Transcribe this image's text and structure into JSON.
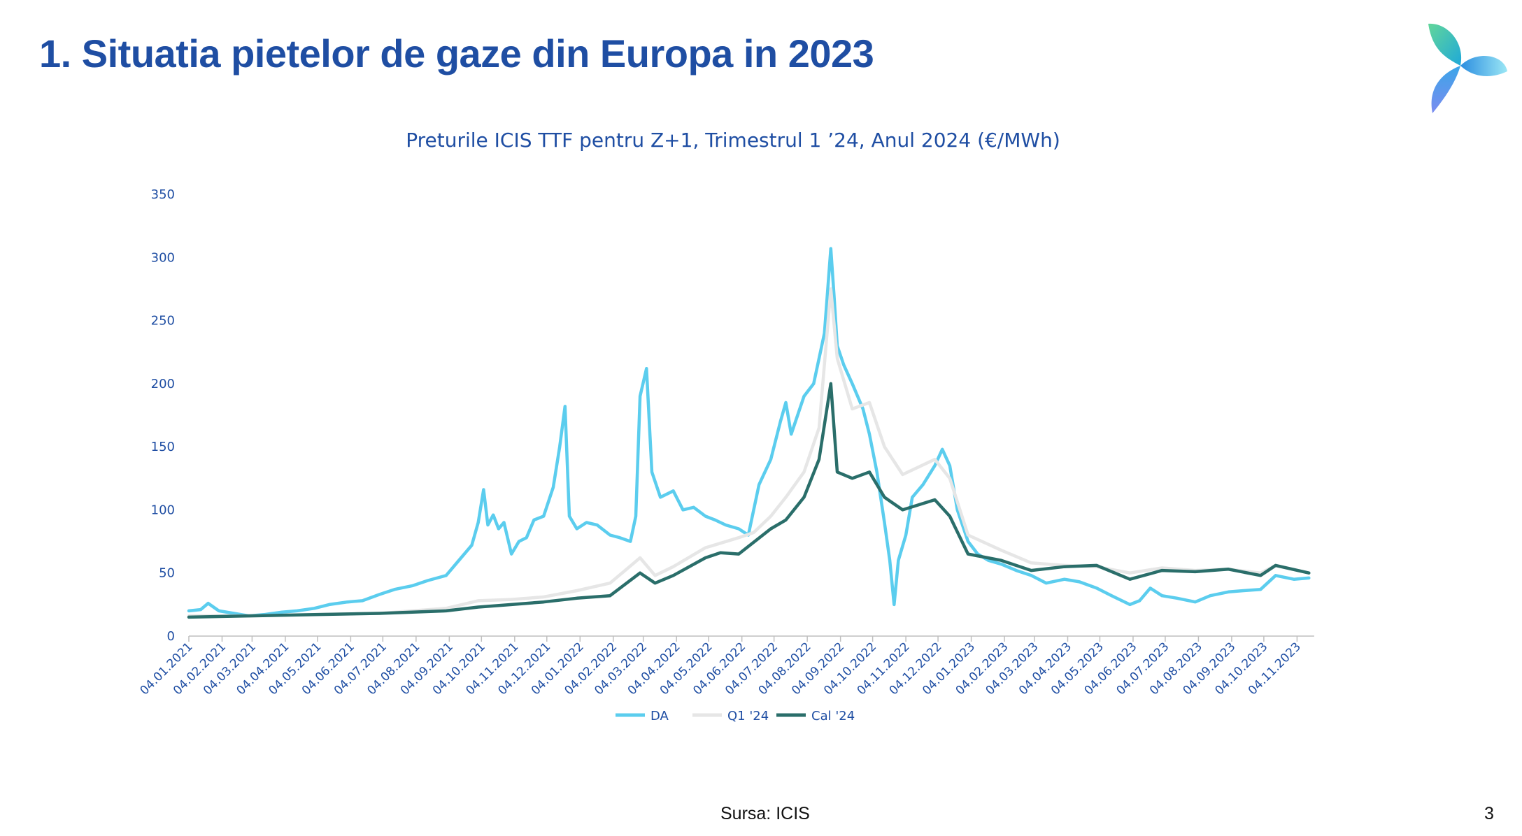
{
  "slide": {
    "title": "1. Situatia pietelor de gaze din Europa in 2023",
    "source": "Sursa: ICIS",
    "page_number": "3"
  },
  "chart_data": {
    "type": "line",
    "title": "Preturile ICIS TTF pentru Z+1, Trimestrul 1 ’24, Anul 2024 (€/MWh)",
    "xlabel": "",
    "ylabel": "",
    "ylim": [
      0,
      350
    ],
    "yticks": [
      0,
      50,
      100,
      150,
      200,
      250,
      300,
      350
    ],
    "grid": false,
    "legend_position": "bottom",
    "x_tick_labels": [
      "04.01.2021",
      "04.02.2021",
      "04.03.2021",
      "04.04.2021",
      "04.05.2021",
      "04.06.2021",
      "04.07.2021",
      "04.08.2021",
      "04.09.2021",
      "04.10.2021",
      "04.11.2021",
      "04.12.2021",
      "04.01.2022",
      "04.02.2022",
      "04.03.2022",
      "04.04.2022",
      "04.05.2022",
      "04.06.2022",
      "04.07.2022",
      "04.08.2022",
      "04.09.2022",
      "04.10.2022",
      "04.11.2022",
      "04.12.2022",
      "04.01.2023",
      "04.02.2023",
      "04.03.2023",
      "04.04.2023",
      "04.05.2023",
      "04.06.2023",
      "04.07.2023",
      "04.08.2023",
      "04.09.2023",
      "04.10.2023",
      "04.11.2023"
    ],
    "series": [
      {
        "name": "DA",
        "color": "#5bcdee",
        "points": [
          [
            "04.01.2021",
            20
          ],
          [
            "15.01.2021",
            21
          ],
          [
            "22.01.2021",
            26
          ],
          [
            "01.02.2021",
            20
          ],
          [
            "15.02.2021",
            18
          ],
          [
            "01.03.2021",
            16
          ],
          [
            "15.03.2021",
            17
          ],
          [
            "01.04.2021",
            19
          ],
          [
            "15.04.2021",
            20
          ],
          [
            "01.05.2021",
            22
          ],
          [
            "15.05.2021",
            25
          ],
          [
            "01.06.2021",
            27
          ],
          [
            "15.06.2021",
            28
          ],
          [
            "01.07.2021",
            33
          ],
          [
            "15.07.2021",
            37
          ],
          [
            "01.08.2021",
            40
          ],
          [
            "15.08.2021",
            44
          ],
          [
            "01.09.2021",
            48
          ],
          [
            "15.09.2021",
            62
          ],
          [
            "25.09.2021",
            72
          ],
          [
            "01.10.2021",
            90
          ],
          [
            "06.10.2021",
            116
          ],
          [
            "10.10.2021",
            88
          ],
          [
            "15.10.2021",
            96
          ],
          [
            "20.10.2021",
            85
          ],
          [
            "25.10.2021",
            90
          ],
          [
            "01.11.2021",
            65
          ],
          [
            "08.11.2021",
            75
          ],
          [
            "15.11.2021",
            78
          ],
          [
            "22.11.2021",
            92
          ],
          [
            "01.12.2021",
            95
          ],
          [
            "10.12.2021",
            118
          ],
          [
            "16.12.2021",
            150
          ],
          [
            "21.12.2021",
            182
          ],
          [
            "25.12.2021",
            95
          ],
          [
            "01.01.2022",
            85
          ],
          [
            "10.01.2022",
            90
          ],
          [
            "20.01.2022",
            88
          ],
          [
            "01.02.2022",
            80
          ],
          [
            "10.02.2022",
            78
          ],
          [
            "20.02.2022",
            75
          ],
          [
            "25.02.2022",
            95
          ],
          [
            "01.03.2022",
            190
          ],
          [
            "07.03.2022",
            212
          ],
          [
            "12.03.2022",
            130
          ],
          [
            "20.03.2022",
            110
          ],
          [
            "01.04.2022",
            115
          ],
          [
            "10.04.2022",
            100
          ],
          [
            "20.04.2022",
            102
          ],
          [
            "01.05.2022",
            95
          ],
          [
            "10.05.2022",
            92
          ],
          [
            "20.05.2022",
            88
          ],
          [
            "01.06.2022",
            85
          ],
          [
            "10.06.2022",
            80
          ],
          [
            "20.06.2022",
            120
          ],
          [
            "01.07.2022",
            140
          ],
          [
            "10.07.2022",
            170
          ],
          [
            "15.07.2022",
            185
          ],
          [
            "20.07.2022",
            160
          ],
          [
            "01.08.2022",
            190
          ],
          [
            "10.08.2022",
            200
          ],
          [
            "20.08.2022",
            240
          ],
          [
            "26.08.2022",
            307
          ],
          [
            "29.08.2022",
            270
          ],
          [
            "01.09.2022",
            230
          ],
          [
            "07.09.2022",
            215
          ],
          [
            "15.09.2022",
            200
          ],
          [
            "25.09.2022",
            180
          ],
          [
            "01.10.2022",
            160
          ],
          [
            "08.10.2022",
            130
          ],
          [
            "15.10.2022",
            90
          ],
          [
            "20.10.2022",
            60
          ],
          [
            "24.10.2022",
            25
          ],
          [
            "28.10.2022",
            60
          ],
          [
            "04.11.2022",
            80
          ],
          [
            "10.11.2022",
            110
          ],
          [
            "20.11.2022",
            120
          ],
          [
            "01.12.2022",
            135
          ],
          [
            "08.12.2022",
            148
          ],
          [
            "15.12.2022",
            135
          ],
          [
            "22.12.2022",
            100
          ],
          [
            "01.01.2023",
            75
          ],
          [
            "10.01.2023",
            65
          ],
          [
            "20.01.2023",
            60
          ],
          [
            "01.02.2023",
            57
          ],
          [
            "15.02.2023",
            52
          ],
          [
            "01.03.2023",
            48
          ],
          [
            "15.03.2023",
            42
          ],
          [
            "01.04.2023",
            45
          ],
          [
            "15.04.2023",
            43
          ],
          [
            "01.05.2023",
            38
          ],
          [
            "15.05.2023",
            32
          ],
          [
            "01.06.2023",
            25
          ],
          [
            "10.06.2023",
            28
          ],
          [
            "20.06.2023",
            38
          ],
          [
            "01.07.2023",
            32
          ],
          [
            "15.07.2023",
            30
          ],
          [
            "01.08.2023",
            27
          ],
          [
            "15.08.2023",
            32
          ],
          [
            "01.09.2023",
            35
          ],
          [
            "15.09.2023",
            36
          ],
          [
            "01.10.2023",
            37
          ],
          [
            "15.10.2023",
            48
          ],
          [
            "01.11.2023",
            45
          ],
          [
            "15.11.2023",
            46
          ]
        ]
      },
      {
        "name": "Q1 '24",
        "color": "#e6e6e6",
        "points": [
          [
            "04.01.2021",
            16
          ],
          [
            "01.03.2021",
            16
          ],
          [
            "01.05.2021",
            17
          ],
          [
            "01.07.2021",
            18
          ],
          [
            "01.09.2021",
            22
          ],
          [
            "01.10.2021",
            28
          ],
          [
            "01.11.2021",
            29
          ],
          [
            "01.12.2021",
            31
          ],
          [
            "01.01.2022",
            36
          ],
          [
            "01.02.2022",
            42
          ],
          [
            "01.03.2022",
            62
          ],
          [
            "15.03.2022",
            48
          ],
          [
            "01.04.2022",
            55
          ],
          [
            "01.05.2022",
            70
          ],
          [
            "01.06.2022",
            78
          ],
          [
            "15.06.2022",
            82
          ],
          [
            "01.07.2022",
            95
          ],
          [
            "15.07.2022",
            110
          ],
          [
            "01.08.2022",
            130
          ],
          [
            "15.08.2022",
            165
          ],
          [
            "26.08.2022",
            275
          ],
          [
            "01.09.2022",
            220
          ],
          [
            "15.09.2022",
            180
          ],
          [
            "01.10.2022",
            185
          ],
          [
            "15.10.2022",
            150
          ],
          [
            "01.11.2022",
            128
          ],
          [
            "01.12.2022",
            140
          ],
          [
            "15.12.2022",
            125
          ],
          [
            "01.01.2023",
            80
          ],
          [
            "01.02.2023",
            68
          ],
          [
            "01.03.2023",
            58
          ],
          [
            "01.04.2023",
            56
          ],
          [
            "01.05.2023",
            55
          ],
          [
            "01.06.2023",
            50
          ],
          [
            "01.07.2023",
            54
          ],
          [
            "01.08.2023",
            52
          ],
          [
            "01.09.2023",
            53
          ],
          [
            "01.10.2023",
            50
          ],
          [
            "15.10.2023",
            56
          ],
          [
            "15.11.2023",
            50
          ]
        ]
      },
      {
        "name": "Cal '24",
        "color": "#2a6e6a",
        "points": [
          [
            "04.01.2021",
            15
          ],
          [
            "01.03.2021",
            16
          ],
          [
            "01.05.2021",
            17
          ],
          [
            "01.07.2021",
            18
          ],
          [
            "01.09.2021",
            20
          ],
          [
            "01.10.2021",
            23
          ],
          [
            "01.11.2021",
            25
          ],
          [
            "01.12.2021",
            27
          ],
          [
            "01.01.2022",
            30
          ],
          [
            "01.02.2022",
            32
          ],
          [
            "01.03.2022",
            50
          ],
          [
            "15.03.2022",
            42
          ],
          [
            "01.04.2022",
            48
          ],
          [
            "01.05.2022",
            62
          ],
          [
            "15.05.2022",
            66
          ],
          [
            "01.06.2022",
            65
          ],
          [
            "01.07.2022",
            85
          ],
          [
            "15.07.2022",
            92
          ],
          [
            "01.08.2022",
            110
          ],
          [
            "15.08.2022",
            140
          ],
          [
            "26.08.2022",
            200
          ],
          [
            "01.09.2022",
            130
          ],
          [
            "15.09.2022",
            125
          ],
          [
            "01.10.2022",
            130
          ],
          [
            "15.10.2022",
            110
          ],
          [
            "01.11.2022",
            100
          ],
          [
            "01.12.2022",
            108
          ],
          [
            "15.12.2022",
            95
          ],
          [
            "01.01.2023",
            65
          ],
          [
            "01.02.2023",
            60
          ],
          [
            "01.03.2023",
            52
          ],
          [
            "01.04.2023",
            55
          ],
          [
            "01.05.2023",
            56
          ],
          [
            "01.06.2023",
            45
          ],
          [
            "01.07.2023",
            52
          ],
          [
            "01.08.2023",
            51
          ],
          [
            "01.09.2023",
            53
          ],
          [
            "01.10.2023",
            48
          ],
          [
            "15.10.2023",
            56
          ],
          [
            "15.11.2023",
            50
          ]
        ]
      }
    ]
  }
}
